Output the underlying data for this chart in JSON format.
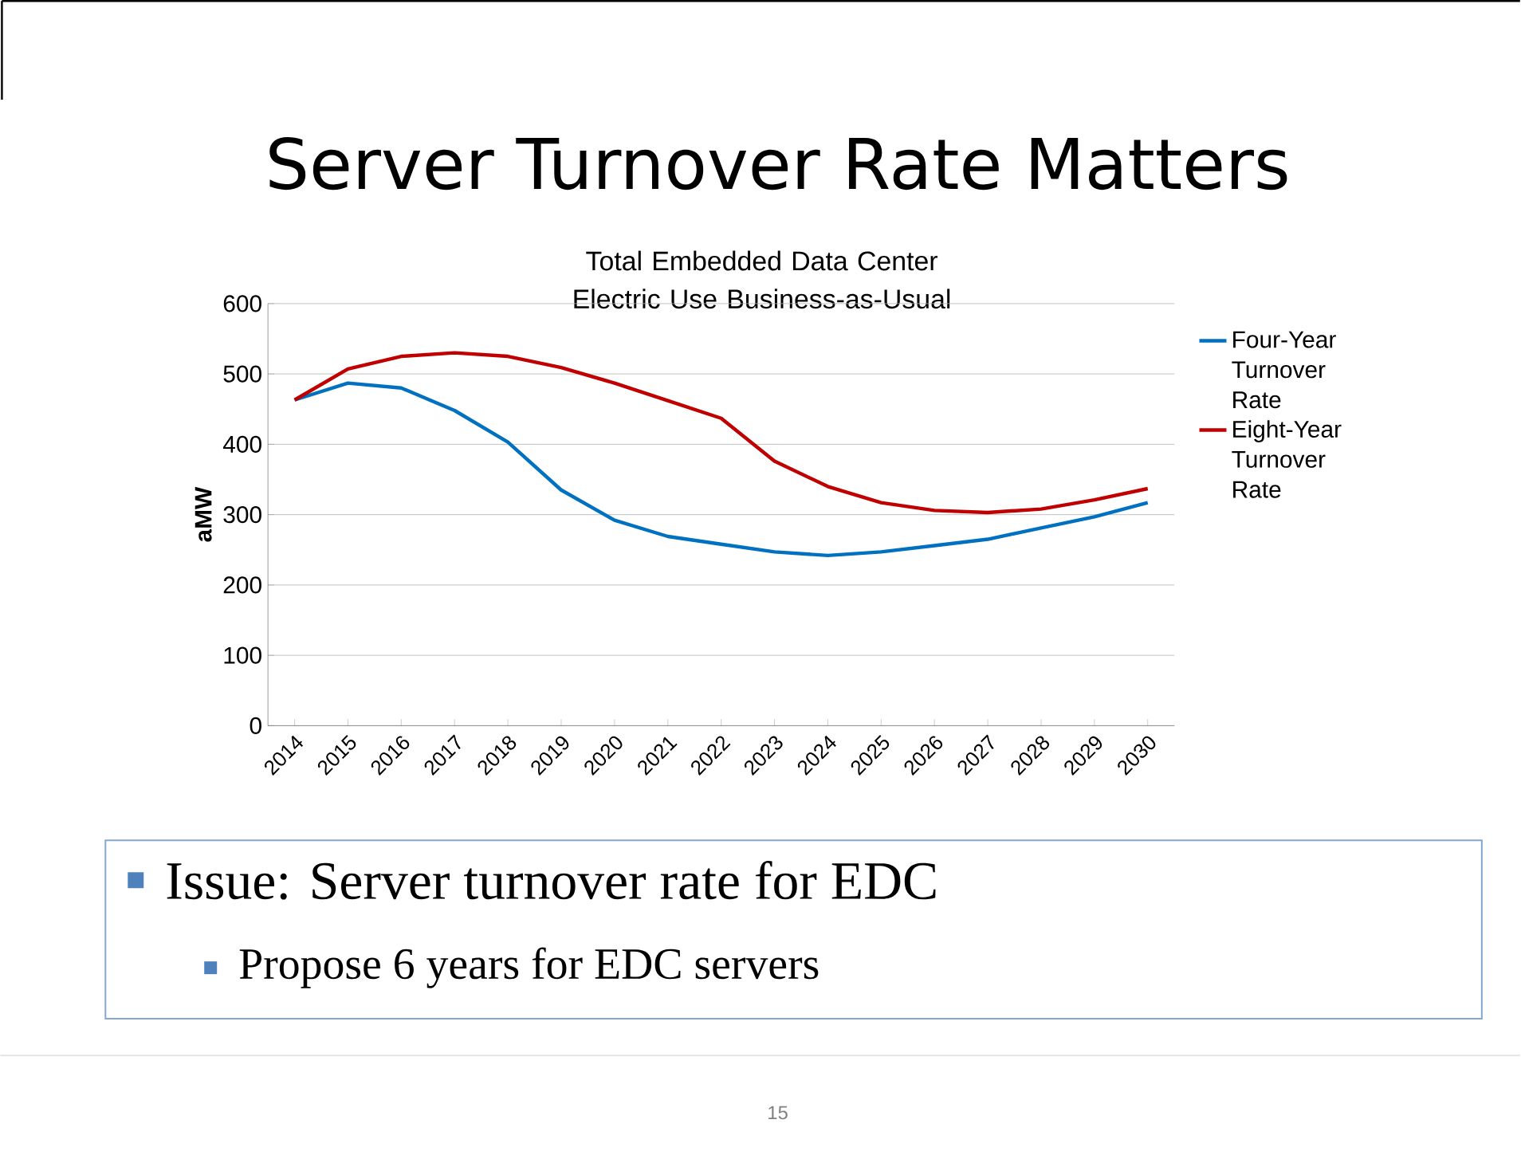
{
  "chart_data": {
    "type": "line",
    "title": "Server Turnover Rate Matters",
    "subtitle": "Total Embedded Data Center Electric Use Business-as-Usual",
    "ylabel": "aMW",
    "categories": [
      "2014",
      "2015",
      "2016",
      "2017",
      "2018",
      "2019",
      "2020",
      "2021",
      "2022",
      "2023",
      "2024",
      "2025",
      "2026",
      "2027",
      "2028",
      "2029",
      "2030"
    ],
    "series": [
      {
        "name": "Four-Year Turnover Rate",
        "color": "#0070c0",
        "values": [
          463,
          487,
          480,
          448,
          403,
          335,
          292,
          269,
          258,
          247,
          242,
          247,
          256,
          265,
          281,
          297,
          317
        ]
      },
      {
        "name": "Eight-Year Turnover Rate",
        "color": "#c00000",
        "values": [
          463,
          507,
          525,
          530,
          525,
          509,
          487,
          462,
          437,
          376,
          340,
          317,
          306,
          303,
          308,
          321,
          337
        ]
      }
    ],
    "ylim": [
      0,
      600
    ],
    "yticks": [
      0,
      100,
      200,
      300,
      400,
      500,
      600
    ],
    "grid": "y",
    "legend": "right",
    "marker": "none",
    "line_style": "solid",
    "annotations": [
      "Issue:  Server turnover rate for EDC",
      "Propose 6 years for EDC servers",
      "15"
    ]
  }
}
